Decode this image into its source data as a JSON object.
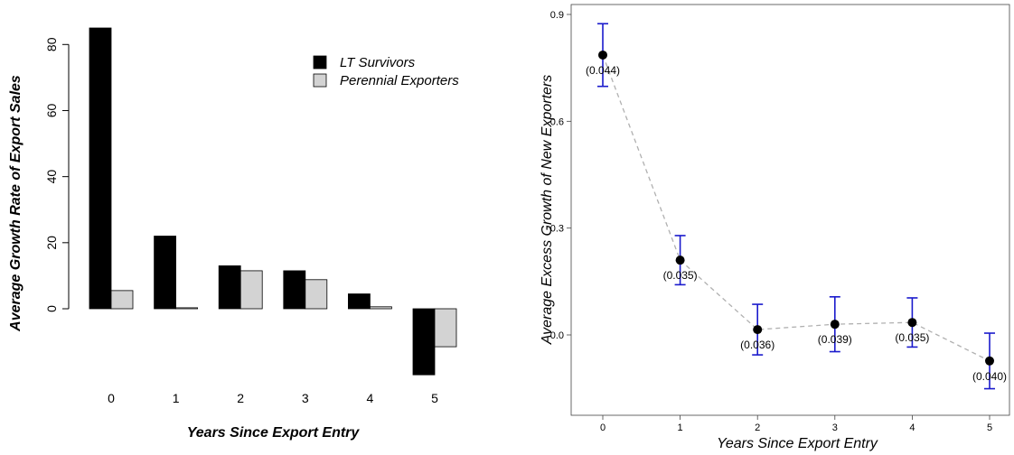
{
  "chart_data": [
    {
      "type": "bar",
      "title": "",
      "xlabel": "Years Since Export Entry",
      "ylabel": "Average Growth Rate of Export Sales",
      "categories": [
        "0",
        "1",
        "2",
        "3",
        "4",
        "5"
      ],
      "series": [
        {
          "name": "LT Survivors",
          "values": [
            85,
            22,
            13,
            11.5,
            4.5,
            -20
          ],
          "color": "#000000"
        },
        {
          "name": "Perennial Exporters",
          "values": [
            5.5,
            0.3,
            11.5,
            8.8,
            0.6,
            -11.5
          ],
          "color": "#d3d3d3"
        }
      ],
      "yticks": [
        0,
        20,
        40,
        60,
        80
      ],
      "ylim": [
        -20,
        85
      ],
      "legend_position": "top-right",
      "grid": false
    },
    {
      "type": "scatter",
      "title": "",
      "xlabel": "Years Since Export Entry",
      "ylabel": "Average Excess Growth of New Exporters",
      "x": [
        0,
        1,
        2,
        3,
        4,
        5
      ],
      "y": [
        0.786,
        0.21,
        0.015,
        0.03,
        0.035,
        -0.073
      ],
      "error_half_width": [
        0.088,
        0.069,
        0.071,
        0.077,
        0.069,
        0.078
      ],
      "labels": [
        "(0.044)",
        "(0.035)",
        "(0.036)",
        "(0.039)",
        "(0.035)",
        "(0.040)"
      ],
      "xticks": [
        0,
        1,
        2,
        3,
        4,
        5
      ],
      "yticks": [
        0.0,
        0.3,
        0.6,
        0.9
      ],
      "ytick_labels": [
        "0.0",
        "0.3",
        "0.6",
        "0.9"
      ],
      "xlim": [
        -0.15,
        5.15
      ],
      "ylim": [
        -0.225,
        0.91
      ],
      "connecting_line": "dashed",
      "error_bar_color": "#1a1acc",
      "line_color": "#b0b0b0",
      "grid": false
    }
  ]
}
